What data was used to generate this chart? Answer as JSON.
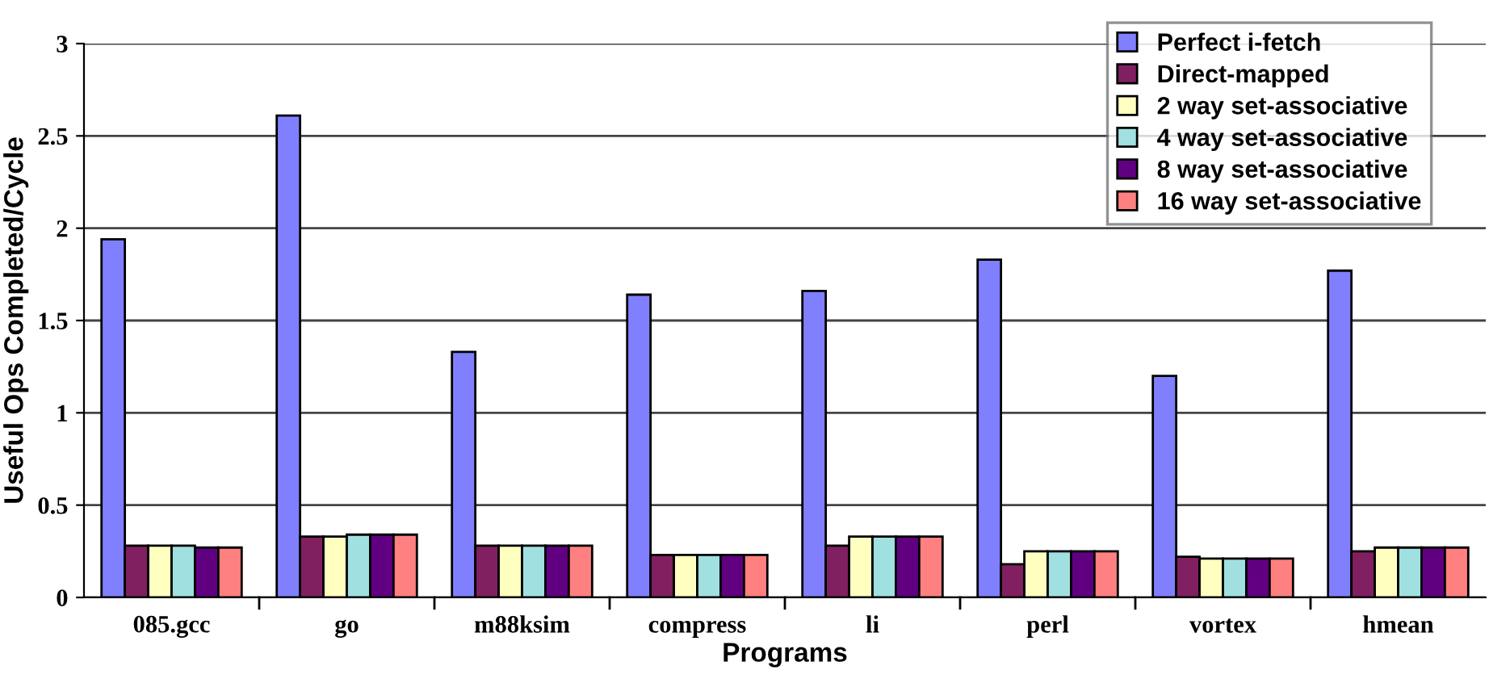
{
  "chart_data": {
    "type": "bar",
    "xlabel": "Programs",
    "ylabel": "Useful Ops Completed/Cycle",
    "categories": [
      "085.gcc",
      "go",
      "m88ksim",
      "compress",
      "li",
      "perl",
      "vortex",
      "hmean"
    ],
    "series": [
      {
        "name": "Perfect i-fetch",
        "color": "#8080ff",
        "values": [
          1.94,
          2.61,
          1.33,
          1.64,
          1.66,
          1.83,
          1.2,
          1.77
        ]
      },
      {
        "name": "Direct-mapped",
        "color": "#802060",
        "values": [
          0.28,
          0.33,
          0.28,
          0.23,
          0.28,
          0.18,
          0.22,
          0.25
        ]
      },
      {
        "name": "2 way set-associative",
        "color": "#ffffc0",
        "values": [
          0.28,
          0.33,
          0.28,
          0.23,
          0.33,
          0.25,
          0.21,
          0.27
        ]
      },
      {
        "name": "4 way set-associative",
        "color": "#a0e0e0",
        "values": [
          0.28,
          0.34,
          0.28,
          0.23,
          0.33,
          0.25,
          0.21,
          0.27
        ]
      },
      {
        "name": "8 way set-associative",
        "color": "#600080",
        "values": [
          0.27,
          0.34,
          0.28,
          0.23,
          0.33,
          0.25,
          0.21,
          0.27
        ]
      },
      {
        "name": "16 way set-associative",
        "color": "#ff8080",
        "values": [
          0.27,
          0.34,
          0.28,
          0.23,
          0.33,
          0.25,
          0.21,
          0.27
        ]
      }
    ],
    "ylim": [
      0,
      3
    ],
    "yticks": [
      0,
      0.5,
      1,
      1.5,
      2,
      2.5,
      3
    ],
    "grid": "y",
    "legend": "top right"
  }
}
